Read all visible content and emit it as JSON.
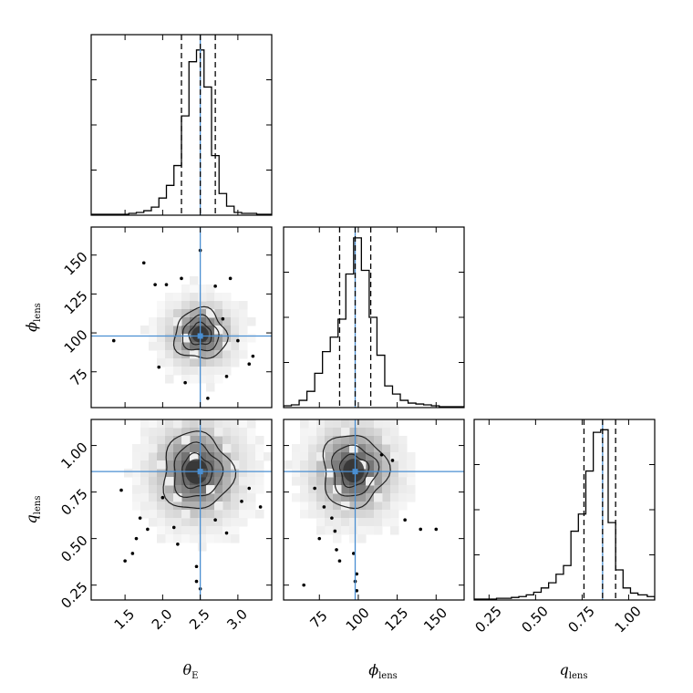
{
  "chart_data": {
    "type": "corner",
    "parameters": [
      {
        "id": "theta_E",
        "symbol": "θ",
        "subscript": "E",
        "range": [
          1.05,
          3.45
        ],
        "ticks": [
          1.5,
          2.0,
          2.5,
          3.0
        ],
        "tick_labels": [
          "1.5",
          "2.0",
          "2.5",
          "3.0"
        ],
        "truth": 2.5,
        "quantiles": [
          2.25,
          2.5,
          2.7
        ]
      },
      {
        "id": "phi_lens",
        "symbol": "ϕ",
        "subscript": "lens",
        "range": [
          52,
          168
        ],
        "ticks": [
          75,
          100,
          125,
          150
        ],
        "tick_labels": [
          "75",
          "100",
          "125",
          "150"
        ],
        "truth": 98,
        "quantiles": [
          88,
          98,
          108
        ]
      },
      {
        "id": "q_lens",
        "symbol": "q",
        "subscript": "lens",
        "range": [
          0.17,
          1.14
        ],
        "ticks": [
          0.25,
          0.5,
          0.75,
          1.0
        ],
        "tick_labels": [
          "0.25",
          "0.50",
          "0.75",
          "1.00"
        ],
        "truth": 0.86,
        "quantiles": [
          0.76,
          0.86,
          0.93
        ]
      }
    ],
    "histograms": [
      {
        "param": "theta_E",
        "bin_edges": [
          1.05,
          1.15,
          1.25,
          1.35,
          1.45,
          1.55,
          1.65,
          1.75,
          1.85,
          1.95,
          2.05,
          2.15,
          2.25,
          2.35,
          2.45,
          2.55,
          2.65,
          2.75,
          2.85,
          2.95,
          3.05,
          3.15,
          3.25,
          3.35,
          3.45
        ],
        "counts": [
          1,
          1,
          1,
          1,
          1,
          2,
          3,
          5,
          9,
          19,
          33,
          55,
          110,
          170,
          183,
          142,
          66,
          24,
          10,
          3,
          2,
          2,
          1,
          1
        ],
        "ylim": [
          0,
          200
        ]
      },
      {
        "param": "phi_lens",
        "bin_edges": [
          52,
          57,
          62,
          67,
          72,
          77,
          82,
          87,
          92,
          97,
          102,
          107,
          112,
          117,
          122,
          127,
          132,
          137,
          142,
          147,
          152,
          157,
          162,
          168
        ],
        "counts": [
          2,
          3,
          8,
          18,
          38,
          62,
          78,
          98,
          148,
          188,
          152,
          100,
          58,
          24,
          15,
          8,
          5,
          4,
          3,
          2,
          1,
          1,
          1
        ],
        "ylim": [
          0,
          200
        ]
      },
      {
        "param": "q_lens",
        "bin_edges": [
          0.17,
          0.21,
          0.25,
          0.29,
          0.33,
          0.37,
          0.41,
          0.45,
          0.49,
          0.53,
          0.57,
          0.61,
          0.65,
          0.69,
          0.73,
          0.77,
          0.81,
          0.85,
          0.89,
          0.93,
          0.97,
          1.01,
          1.05,
          1.1,
          1.14
        ],
        "counts": [
          1,
          1,
          1,
          2,
          2,
          3,
          4,
          6,
          9,
          14,
          20,
          30,
          40,
          80,
          100,
          150,
          195,
          198,
          90,
          35,
          14,
          8,
          6,
          4
        ],
        "ylim": [
          0,
          210
        ]
      }
    ],
    "joint": [
      {
        "x": "theta_E",
        "y": "phi_lens",
        "center": [
          2.5,
          99
        ],
        "contour_sigma": [
          0.15,
          7
        ],
        "contour_levels": [
          1.0,
          1.6,
          2.3
        ],
        "outliers": [
          [
            1.75,
            145
          ],
          [
            1.9,
            131
          ],
          [
            2.05,
            131
          ],
          [
            2.25,
            135
          ],
          [
            2.7,
            130
          ],
          [
            2.9,
            135
          ],
          [
            1.35,
            95
          ],
          [
            3.0,
            95
          ],
          [
            3.2,
            85
          ],
          [
            2.6,
            58
          ],
          [
            2.5,
            153
          ],
          [
            2.8,
            109
          ],
          [
            2.3,
            68
          ],
          [
            3.15,
            80
          ],
          [
            2.85,
            72
          ],
          [
            1.95,
            78
          ]
        ]
      },
      {
        "x": "theta_E",
        "y": "q_lens",
        "center": [
          2.45,
          0.86
        ],
        "contour_sigma": [
          0.2,
          0.09
        ],
        "contour_levels": [
          1.0,
          1.6,
          2.3
        ],
        "outliers": [
          [
            1.45,
            0.76
          ],
          [
            1.7,
            0.61
          ],
          [
            1.8,
            0.55
          ],
          [
            1.65,
            0.5
          ],
          [
            1.6,
            0.42
          ],
          [
            1.5,
            0.38
          ],
          [
            2.2,
            0.47
          ],
          [
            2.45,
            0.35
          ],
          [
            2.45,
            0.27
          ],
          [
            2.5,
            0.23
          ],
          [
            3.05,
            0.7
          ],
          [
            3.15,
            0.77
          ],
          [
            3.3,
            0.67
          ],
          [
            2.85,
            0.53
          ],
          [
            2.0,
            0.72
          ],
          [
            2.15,
            0.56
          ],
          [
            2.7,
            0.6
          ]
        ]
      },
      {
        "x": "phi_lens",
        "y": "q_lens",
        "center": [
          97,
          0.865
        ],
        "contour_sigma": [
          9,
          0.085
        ],
        "contour_levels": [
          1.0,
          1.6,
          2.3
        ],
        "outliers": [
          [
            72,
            0.77
          ],
          [
            78,
            0.67
          ],
          [
            83,
            0.61
          ],
          [
            85,
            0.54
          ],
          [
            86,
            0.44
          ],
          [
            88,
            0.38
          ],
          [
            97,
            0.42
          ],
          [
            99,
            0.31
          ],
          [
            98,
            0.27
          ],
          [
            99,
            0.22
          ],
          [
            65,
            0.25
          ],
          [
            75,
            0.5
          ],
          [
            130,
            0.6
          ],
          [
            140,
            0.55
          ],
          [
            115,
            0.95
          ],
          [
            122,
            0.92
          ],
          [
            150,
            0.55
          ]
        ]
      }
    ],
    "colors": {
      "hist": "#000000",
      "truth": "#4a8fd2",
      "contour": "#222222",
      "frame": "#000000"
    },
    "grid": false,
    "legend": "none"
  }
}
